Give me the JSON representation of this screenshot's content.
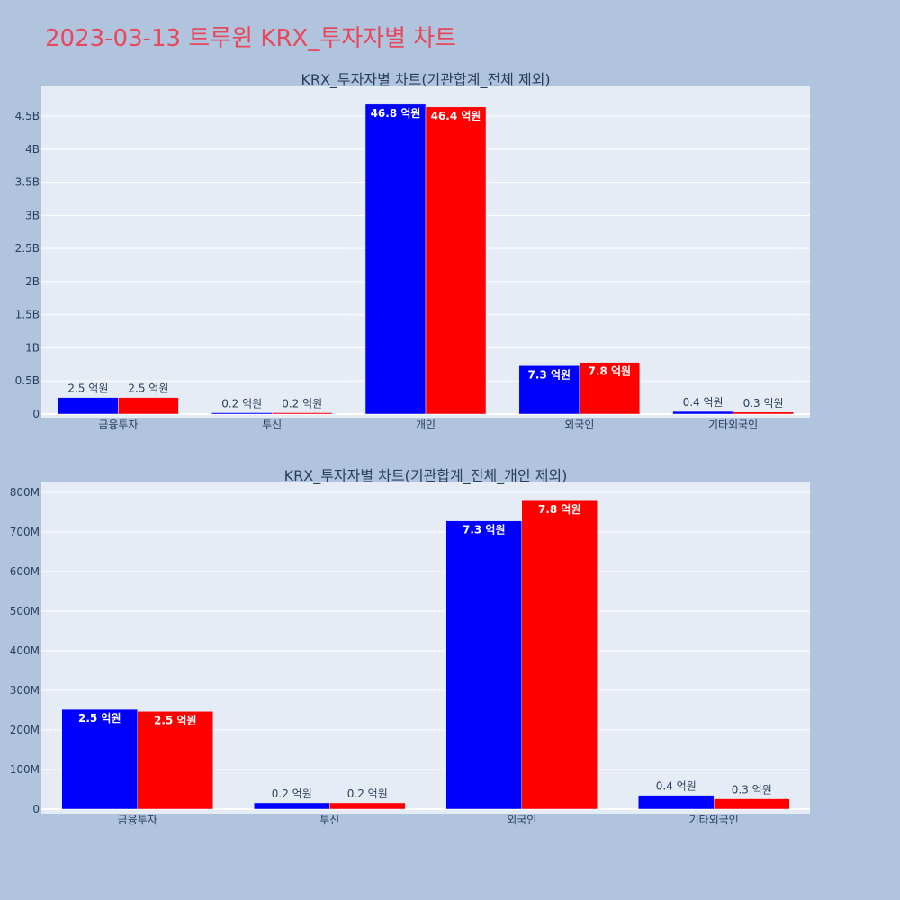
{
  "page_title": "2023-03-13 트루윈 KRX_투자자별 차트",
  "colors": {
    "buy": "#0000ff",
    "sell": "#ff0000",
    "plot_bg": "#e5ecf6",
    "paper_bg": "#b0c4de",
    "title": "#e8485c"
  },
  "chart_data": [
    {
      "type": "bar",
      "title": "KRX_투자자별 차트(기관합계_전체 제외)",
      "categories": [
        "금융투자",
        "투신",
        "개인",
        "외국인",
        "기타외국인"
      ],
      "series": [
        {
          "color": "#0000ff",
          "values": [
            250000000,
            20000000,
            4680000000,
            730000000,
            40000000
          ],
          "labels": [
            "2.5 억원",
            "0.2 억원",
            "46.8 억원",
            "7.3 억원",
            "0.4 억원"
          ]
        },
        {
          "color": "#ff0000",
          "values": [
            250000000,
            20000000,
            4640000000,
            780000000,
            30000000
          ],
          "labels": [
            "2.5 억원",
            "0.2 억원",
            "46.4 억원",
            "7.8 억원",
            "0.3 억원"
          ]
        }
      ],
      "ylim": [
        0,
        4950000000
      ],
      "yticks": [
        0,
        500000000,
        1000000000,
        1500000000,
        2000000000,
        2500000000,
        3000000000,
        3500000000,
        4000000000,
        4500000000
      ],
      "ytick_labels": [
        "0",
        "0.5B",
        "1B",
        "1.5B",
        "2B",
        "2.5B",
        "3B",
        "3.5B",
        "4B",
        "4.5B"
      ],
      "grid": true
    },
    {
      "type": "bar",
      "title": "KRX_투자자별 차트(기관합계_전체_개인 제외)",
      "categories": [
        "금융투자",
        "투신",
        "외국인",
        "기타외국인"
      ],
      "series": [
        {
          "color": "#0000ff",
          "values": [
            252000000,
            16000000,
            728000000,
            35000000
          ],
          "labels": [
            "2.5 억원",
            "0.2 억원",
            "7.3 억원",
            "0.4 억원"
          ]
        },
        {
          "color": "#ff0000",
          "values": [
            247000000,
            16000000,
            779000000,
            26000000
          ],
          "labels": [
            "2.5 억원",
            "0.2 억원",
            "7.8 억원",
            "0.3 억원"
          ]
        }
      ],
      "ylim": [
        0,
        825000000
      ],
      "yticks": [
        0,
        100000000,
        200000000,
        300000000,
        400000000,
        500000000,
        600000000,
        700000000,
        800000000
      ],
      "ytick_labels": [
        "0",
        "100M",
        "200M",
        "300M",
        "400M",
        "500M",
        "600M",
        "700M",
        "800M"
      ],
      "grid": true
    }
  ]
}
